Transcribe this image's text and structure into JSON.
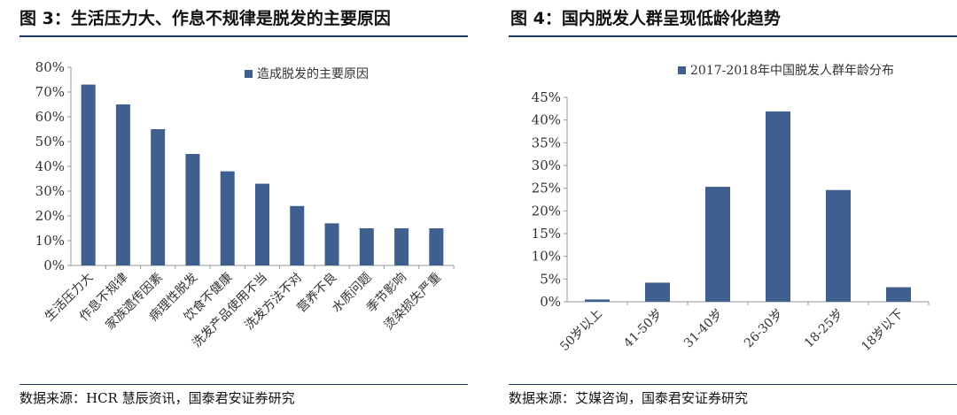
{
  "left": {
    "title": "图 3：生活压力大、作息不规律是脱发的主要原因",
    "source": "数据来源：HCR 慧辰资讯，国泰君安证券研究",
    "chart_data": {
      "type": "bar",
      "categories": [
        "生活压力大",
        "作息不规律",
        "家族遗传因素",
        "病理性脱发",
        "饮食不健康",
        "洗发产品使用不当",
        "洗发方法不对",
        "营养不良",
        "水质问题",
        "季节影响",
        "烫染损失严重"
      ],
      "series": [
        {
          "name": "造成脱发的主要原因",
          "values": [
            73,
            65,
            55,
            45,
            38,
            33,
            24,
            17,
            15,
            15,
            15
          ]
        }
      ],
      "yticks": [
        "0%",
        "10%",
        "20%",
        "30%",
        "40%",
        "50%",
        "60%",
        "70%",
        "80%"
      ],
      "ylim": [
        0,
        80
      ],
      "legend": "top-right",
      "color": "#3f5f8f"
    }
  },
  "right": {
    "title": "图 4：国内脱发人群呈现低龄化趋势",
    "source": "数据来源：艾媒咨询，国泰君安证券研究",
    "chart_data": {
      "type": "bar",
      "categories": [
        "50岁以上",
        "41-50岁",
        "31-40岁",
        "26-30岁",
        "18-25岁",
        "18岁以下"
      ],
      "series": [
        {
          "name": "2017-2018年中国脱发人群年龄分布",
          "values": [
            0.5,
            4.2,
            25.3,
            41.9,
            24.6,
            3.2
          ]
        }
      ],
      "yticks": [
        "0%",
        "5%",
        "10%",
        "15%",
        "20%",
        "25%",
        "30%",
        "35%",
        "40%",
        "45%"
      ],
      "ylim": [
        0,
        45
      ],
      "legend": "top",
      "color": "#3f5f8f"
    }
  }
}
